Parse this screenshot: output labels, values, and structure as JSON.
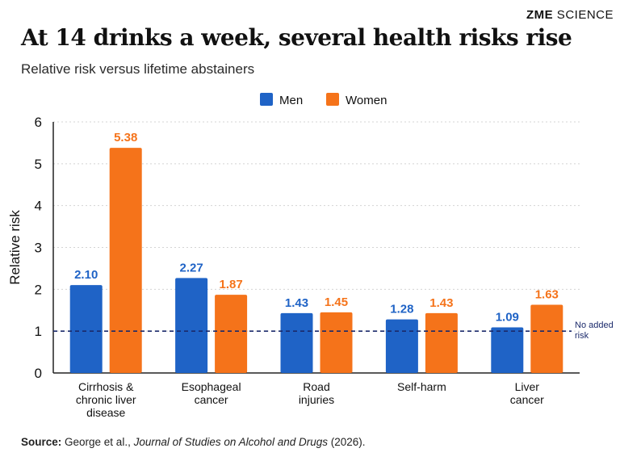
{
  "brand": {
    "bold": "ZME",
    "rest": " SCIENCE"
  },
  "title": "At 14 drinks a week, several health risks rise",
  "subtitle": "Relative risk versus lifetime abstainers",
  "source": {
    "label": "Source:",
    "text_before": " George et al., ",
    "journal": "Journal of Studies on Alcohol and Drugs",
    "text_after": " (2026)."
  },
  "colors": {
    "men": "#1f63c6",
    "women": "#f5731a",
    "reference_line": "#1b2a6b",
    "grid": "#d4d4d4"
  },
  "chart_data": {
    "type": "bar",
    "categories": [
      [
        "Cirrhosis &",
        "chronic liver",
        "disease"
      ],
      [
        "Esophageal",
        "cancer"
      ],
      [
        "Road",
        "injuries"
      ],
      [
        "Self-harm"
      ],
      [
        "Liver",
        "cancer"
      ]
    ],
    "series": [
      {
        "name": "Men",
        "values": [
          2.1,
          2.27,
          1.43,
          1.28,
          1.09
        ],
        "labels": [
          "2.10",
          "2.27",
          "1.43",
          "1.28",
          "1.09"
        ]
      },
      {
        "name": "Women",
        "values": [
          5.38,
          1.87,
          1.45,
          1.43,
          1.63
        ],
        "labels": [
          "5.38",
          "1.87",
          "1.45",
          "1.43",
          "1.63"
        ]
      }
    ],
    "ylabel": "Relative risk",
    "xlabel": "",
    "ylim": [
      0,
      6
    ],
    "yticks": [
      "0",
      "1",
      "2",
      "3",
      "4",
      "5",
      "6"
    ],
    "grid": true,
    "legend": "top-center",
    "reference_line": {
      "value": 1,
      "label": [
        "No added",
        "risk"
      ]
    }
  }
}
